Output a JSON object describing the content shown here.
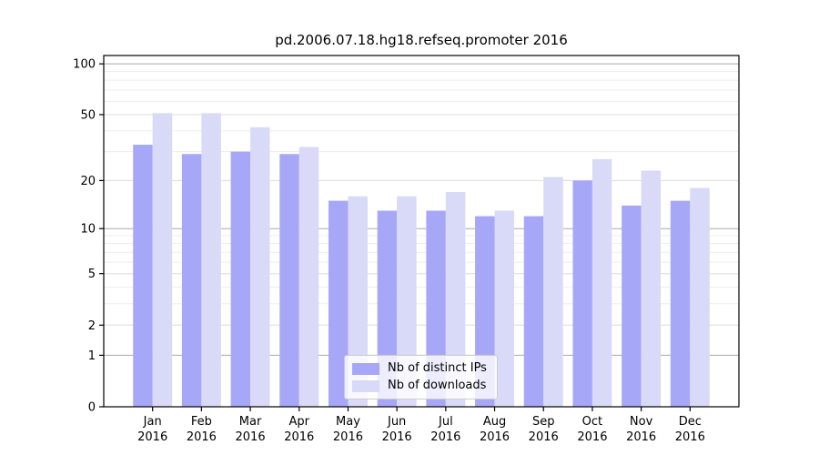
{
  "chart_data": {
    "type": "bar",
    "title": "pd.2006.07.18.hg18.refseq.promoter 2016",
    "categories": [
      "Jan 2016",
      "Feb 2016",
      "Mar 2016",
      "Apr 2016",
      "May 2016",
      "Jun 2016",
      "Jul 2016",
      "Aug 2016",
      "Sep 2016",
      "Oct 2016",
      "Nov 2016",
      "Dec 2016"
    ],
    "series": [
      {
        "name": "Nb of distinct IPs",
        "color": "#a7a7f7",
        "values": [
          33,
          29,
          30,
          29,
          15,
          13,
          13,
          12,
          12,
          20,
          14,
          15
        ]
      },
      {
        "name": "Nb of downloads",
        "color": "#d9d9f8",
        "values": [
          51,
          51,
          42,
          32,
          16,
          16,
          17,
          13,
          21,
          27,
          23,
          18
        ]
      }
    ],
    "yscale": "log1p",
    "ylim": [
      0,
      112
    ],
    "yticks": [
      0,
      1,
      2,
      5,
      10,
      20,
      50,
      100
    ],
    "yticks_minor": [
      3,
      4,
      6,
      7,
      8,
      9,
      30,
      40,
      60,
      70,
      80,
      90
    ],
    "xlabel": "",
    "ylabel": "",
    "grid": true,
    "legend_position": "lower center"
  },
  "colors": {
    "bar_distinct_ips": "#a7a7f7",
    "bar_downloads": "#d9d9f8",
    "grid_decade": "#a9a9a9",
    "grid_major": "#dcdcdc",
    "grid_minor": "#ededed",
    "axis": "#000000",
    "legend_border": "#cccccc",
    "text": "#000000"
  }
}
